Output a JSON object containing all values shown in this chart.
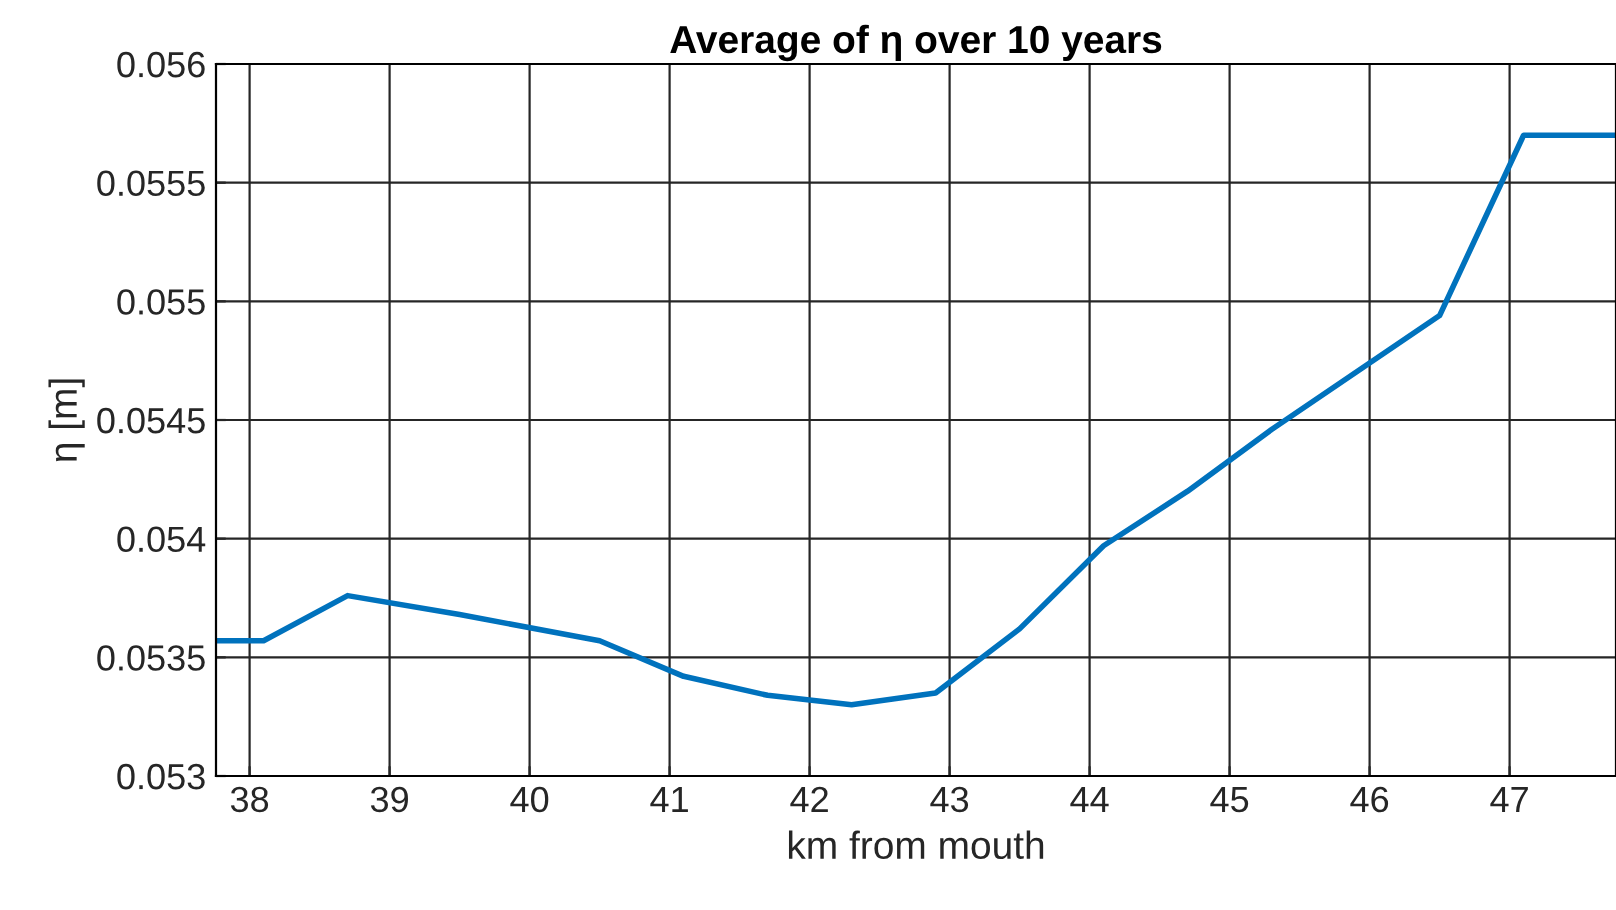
{
  "chart_data": {
    "type": "line",
    "title": "Average of η over 10 years",
    "xlabel": "km from mouth",
    "ylabel": "η [m]",
    "x": [
      37.76,
      38.1,
      38.7,
      39.5,
      40.5,
      41.1,
      41.7,
      42.3,
      42.9,
      43.5,
      44.1,
      44.7,
      45.3,
      45.9,
      46.5,
      47.1,
      47.76
    ],
    "series": [
      {
        "color": "#0072bd",
        "values": [
          0.05357,
          0.05357,
          0.05376,
          0.05368,
          0.05357,
          0.05342,
          0.05334,
          0.0533,
          0.05335,
          0.05362,
          0.05397,
          0.0542,
          0.05446,
          0.0547,
          0.05494,
          0.0557,
          0.0557
        ]
      }
    ],
    "xlim": [
      37.76,
      47.76
    ],
    "xticks": [
      38,
      39,
      40,
      41,
      42,
      43,
      44,
      45,
      46,
      47
    ],
    "ylim": [
      0.053,
      0.056
    ],
    "yticks": [
      0.053,
      0.0535,
      0.054,
      0.0545,
      0.055,
      0.0555,
      0.056
    ],
    "grid": true,
    "marker": "none",
    "line_style": "solid"
  }
}
